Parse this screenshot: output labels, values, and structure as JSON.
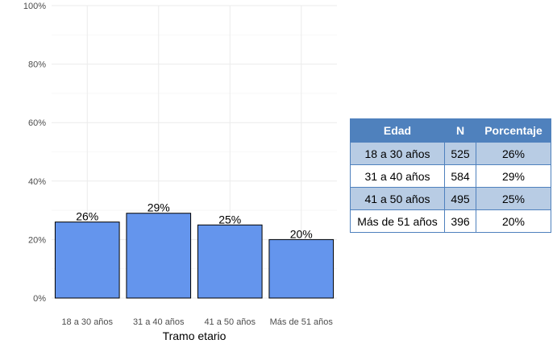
{
  "chart_data": {
    "type": "bar",
    "title": "",
    "xlabel": "Tramo etario",
    "ylabel": "",
    "categories": [
      "18 a 30 años",
      "31 a 40 años",
      "41 a 50 años",
      "Más de 51 años"
    ],
    "values": [
      26,
      29,
      25,
      20
    ],
    "value_labels": [
      "26%",
      "29%",
      "25%",
      "20%"
    ],
    "ylim": [
      0,
      100
    ],
    "yticks": [
      0,
      20,
      40,
      60,
      80,
      100
    ],
    "ytick_labels": [
      "0%",
      "20%",
      "40%",
      "60%",
      "80%",
      "100%"
    ],
    "grid": true,
    "bar_color": "#6495ed"
  },
  "table": {
    "headers": [
      "Edad",
      "N",
      "Porcentaje"
    ],
    "rows": [
      [
        "18 a 30 años",
        "525",
        "26%"
      ],
      [
        "31 a 40 años",
        "584",
        "29%"
      ],
      [
        "41 a 50 años",
        "495",
        "25%"
      ],
      [
        "Más de 51 años",
        "396",
        "20%"
      ]
    ],
    "header_color": "#4f81bd",
    "stripe_color": "#b8cce4"
  }
}
